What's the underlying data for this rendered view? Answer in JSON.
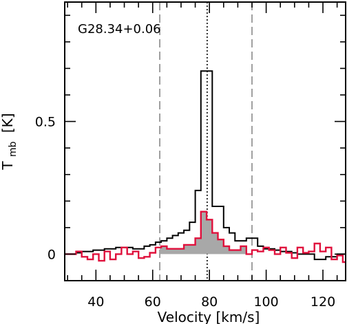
{
  "chart_data": {
    "type": "line",
    "source_label": "G28.34+0.06",
    "xlabel": "Velocity [km/s]",
    "ylabel_main": "T",
    "ylabel_sub": "mb",
    "ylabel_unit": "[K]",
    "xlim": [
      29,
      128
    ],
    "ylim": [
      -0.1,
      0.95
    ],
    "xticks": [
      40,
      60,
      80,
      100,
      120
    ],
    "yticks": [
      {
        "value": 0,
        "label": "0"
      },
      {
        "value": 0.5,
        "label": "0.5"
      }
    ],
    "colors": {
      "series1": "#000000",
      "series2": "#e0103c",
      "fill": "#a8a8a8",
      "guides": "#888888"
    },
    "vlines": [
      {
        "x": 62.5,
        "style": "dashed"
      },
      {
        "x": 79.2,
        "style": "dotted"
      },
      {
        "x": 95,
        "style": "dashed"
      }
    ],
    "fill_range": [
      62.5,
      95
    ],
    "bin_edges": [
      29,
      31,
      33,
      35,
      37,
      39,
      41,
      43,
      45,
      47,
      49,
      51,
      53,
      55,
      57,
      59,
      61,
      63,
      65,
      67,
      69,
      71,
      73,
      75,
      77,
      79,
      81,
      83,
      85,
      87,
      89,
      91,
      93,
      95,
      97,
      99,
      101,
      103,
      105,
      107,
      109,
      111,
      113,
      115,
      117,
      119,
      121,
      123,
      125,
      127,
      128
    ],
    "series": [
      {
        "values": [
          0.0,
          0.0,
          0.005,
          0.01,
          0.01,
          0.015,
          0.015,
          0.02,
          0.02,
          0.025,
          0.025,
          0.025,
          0.02,
          0.02,
          0.03,
          0.035,
          0.045,
          0.05,
          0.06,
          0.07,
          0.08,
          0.09,
          0.12,
          0.24,
          0.69,
          0.69,
          0.18,
          0.18,
          0.1,
          0.08,
          0.05,
          0.05,
          0.06,
          0.06,
          0.03,
          0.02,
          0.02,
          0.015,
          0.01,
          0.01,
          0.005,
          0.0,
          0.0,
          0.0,
          -0.02,
          -0.02,
          -0.01,
          -0.01,
          0.0,
          0.0
        ]
      },
      {
        "values": [
          0.0,
          0.0,
          0.01,
          -0.01,
          -0.02,
          0.0,
          -0.025,
          0.01,
          -0.02,
          0.0,
          0.025,
          0.0,
          0.01,
          -0.015,
          -0.01,
          0.005,
          0.025,
          0.03,
          0.02,
          0.02,
          0.02,
          0.035,
          0.035,
          0.06,
          0.16,
          0.13,
          0.08,
          0.055,
          0.03,
          0.015,
          0.015,
          0.03,
          0.0,
          0.015,
          0.01,
          0.025,
          0.015,
          0.0,
          0.025,
          0.005,
          -0.015,
          0.025,
          0.005,
          0.01,
          0.04,
          0.01,
          0.025,
          -0.02,
          -0.005,
          -0.03
        ]
      }
    ]
  }
}
